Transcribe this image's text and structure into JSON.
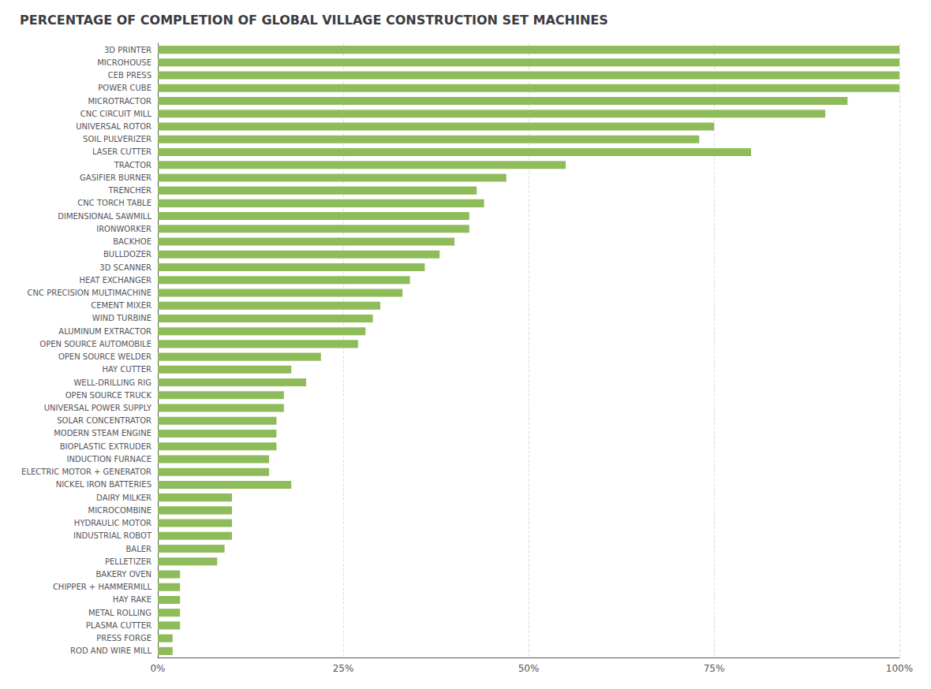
{
  "chart_data": {
    "type": "bar",
    "orientation": "horizontal",
    "title": "PERCENTAGE OF COMPLETION OF GLOBAL VILLAGE CONSTRUCTION SET MACHINES",
    "categories": [
      "3D PRINTER",
      "MICROHOUSE",
      "CEB PRESS",
      "POWER CUBE",
      "MICROTRACTOR",
      "CNC CIRCUIT MILL",
      "UNIVERSAL ROTOR",
      "SOIL PULVERIZER",
      "LASER CUTTER",
      "TRACTOR",
      "GASIFIER BURNER",
      "TRENCHER",
      "CNC TORCH TABLE",
      "DIMENSIONAL SAWMILL",
      "IRONWORKER",
      "BACKHOE",
      "BULLDOZER",
      "3D SCANNER",
      "HEAT EXCHANGER",
      "CNC PRECISION MULTIMACHINE",
      "CEMENT MIXER",
      "WIND TURBINE",
      "ALUMINUM EXTRACTOR",
      "OPEN SOURCE AUTOMOBILE",
      "OPEN SOURCE WELDER",
      "HAY CUTTER",
      "WELL-DRILLING RIG",
      "OPEN SOURCE TRUCK",
      "UNIVERSAL POWER SUPPLY",
      "SOLAR CONCENTRATOR",
      "MODERN STEAM ENGINE",
      "BIOPLASTIC EXTRUDER",
      "INDUCTION FURNACE",
      "ELECTRIC MOTOR + GENERATOR",
      "NICKEL IRON BATTERIES",
      "DAIRY MILKER",
      "MICROCOMBINE",
      "HYDRAULIC MOTOR",
      "INDUSTRIAL ROBOT",
      "BALER",
      "PELLETIZER",
      "BAKERY OVEN",
      "CHIPPER + HAMMERMILL",
      "HAY RAKE",
      "METAL ROLLING",
      "PLASMA CUTTER",
      "PRESS FORGE",
      "ROD AND WIRE MILL"
    ],
    "values": [
      100,
      100,
      100,
      100,
      93,
      90,
      75,
      73,
      80,
      55,
      47,
      43,
      44,
      42,
      42,
      40,
      38,
      36,
      34,
      33,
      30,
      29,
      28,
      27,
      22,
      18,
      20,
      17,
      17,
      16,
      16,
      16,
      15,
      15,
      18,
      10,
      10,
      10,
      10,
      9,
      8,
      3,
      3,
      3,
      3,
      3,
      2,
      2
    ],
    "color": "#8fbc5a",
    "xlim": [
      0,
      100
    ],
    "xticks": [
      {
        "value": 0,
        "label": "0%"
      },
      {
        "value": 25,
        "label": "25%"
      },
      {
        "value": 50,
        "label": "50%"
      },
      {
        "value": 75,
        "label": "75%"
      },
      {
        "value": 100,
        "label": "100%"
      }
    ],
    "grid": true
  }
}
